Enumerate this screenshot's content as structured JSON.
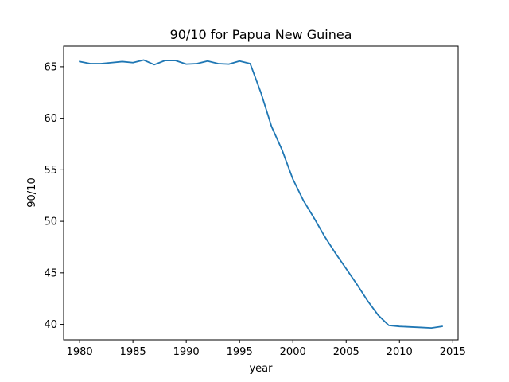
{
  "chart_data": {
    "type": "line",
    "title": "90/10 for Papua New Guinea",
    "xlabel": "year",
    "ylabel": "90/10",
    "xlim": [
      1978.5,
      2015.5
    ],
    "ylim": [
      38.5,
      67.0
    ],
    "x_ticks": [
      1980,
      1985,
      1990,
      1995,
      2000,
      2005,
      2010,
      2015
    ],
    "y_ticks": [
      40,
      45,
      50,
      55,
      60,
      65
    ],
    "grid": false,
    "series": [
      {
        "color": "#1f77b4",
        "x": [
          1980,
          1981,
          1982,
          1983,
          1984,
          1985,
          1986,
          1987,
          1988,
          1989,
          1990,
          1991,
          1992,
          1993,
          1994,
          1995,
          1996,
          1997,
          1998,
          1999,
          2000,
          2001,
          2002,
          2003,
          2004,
          2005,
          2006,
          2007,
          2008,
          2009,
          2010,
          2011,
          2012,
          2013,
          2014
        ],
        "y": [
          65.5,
          65.3,
          65.3,
          65.4,
          65.5,
          65.4,
          65.65,
          65.2,
          65.6,
          65.6,
          65.25,
          65.3,
          65.55,
          65.3,
          65.25,
          65.55,
          65.3,
          62.5,
          59.2,
          56.9,
          54.1,
          52.0,
          50.3,
          48.5,
          46.9,
          45.4,
          43.9,
          42.3,
          40.9,
          39.9,
          39.8,
          39.75,
          39.7,
          39.65,
          39.8
        ]
      }
    ]
  }
}
